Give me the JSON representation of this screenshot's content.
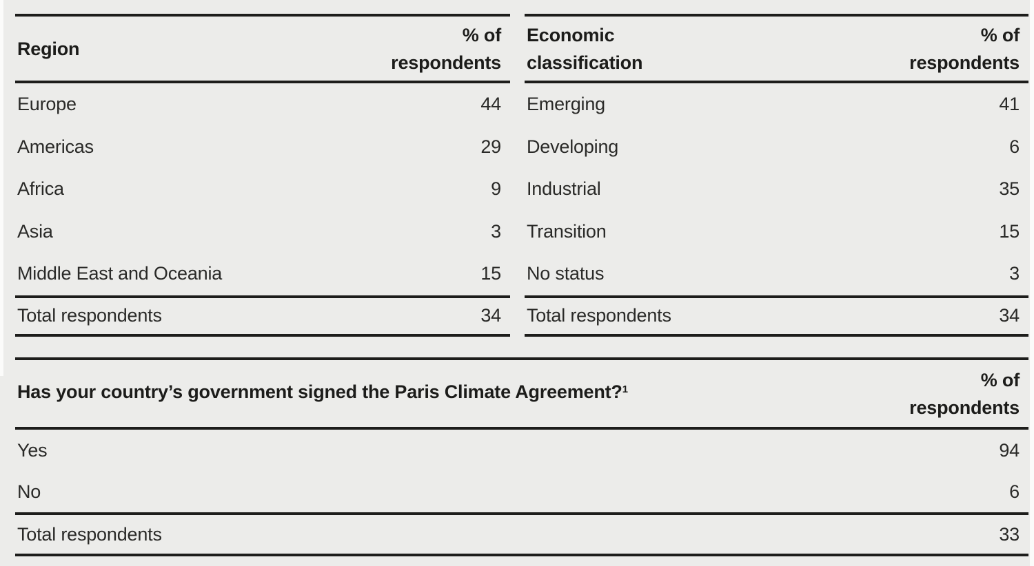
{
  "theme": {
    "bg": "#ECECEA",
    "rule": "#1D1D1B",
    "text": "#2A2A28",
    "heading": "#1C1C1A",
    "margin_strip": "#FBFBFA"
  },
  "tables": {
    "region": {
      "header": {
        "label": "Region",
        "value": "% of respondents"
      },
      "rows": [
        {
          "label": "Europe",
          "value": "44"
        },
        {
          "label": "Americas",
          "value": "29"
        },
        {
          "label": "Africa",
          "value": "9"
        },
        {
          "label": "Asia",
          "value": "3"
        },
        {
          "label": "Middle East and Oceania",
          "value": "15"
        }
      ],
      "total": {
        "label": "Total respondents",
        "value": "34"
      }
    },
    "economic": {
      "header": {
        "label": "Economic classification",
        "value": "% of respondents"
      },
      "rows": [
        {
          "label": "Emerging",
          "value": "41"
        },
        {
          "label": "Developing",
          "value": "6"
        },
        {
          "label": "Industrial",
          "value": "35"
        },
        {
          "label": "Transition",
          "value": "15"
        },
        {
          "label": "No status",
          "value": "3"
        }
      ],
      "total": {
        "label": "Total respondents",
        "value": "34"
      }
    },
    "paris": {
      "header": {
        "label": "Has your country’s government signed the Paris Climate Agreement?",
        "footnote": "1",
        "value": "% of respondents"
      },
      "rows": [
        {
          "label": "Yes",
          "value": "94"
        },
        {
          "label": "No",
          "value": "6"
        }
      ],
      "total": {
        "label": "Total respondents",
        "value": "33"
      }
    }
  }
}
